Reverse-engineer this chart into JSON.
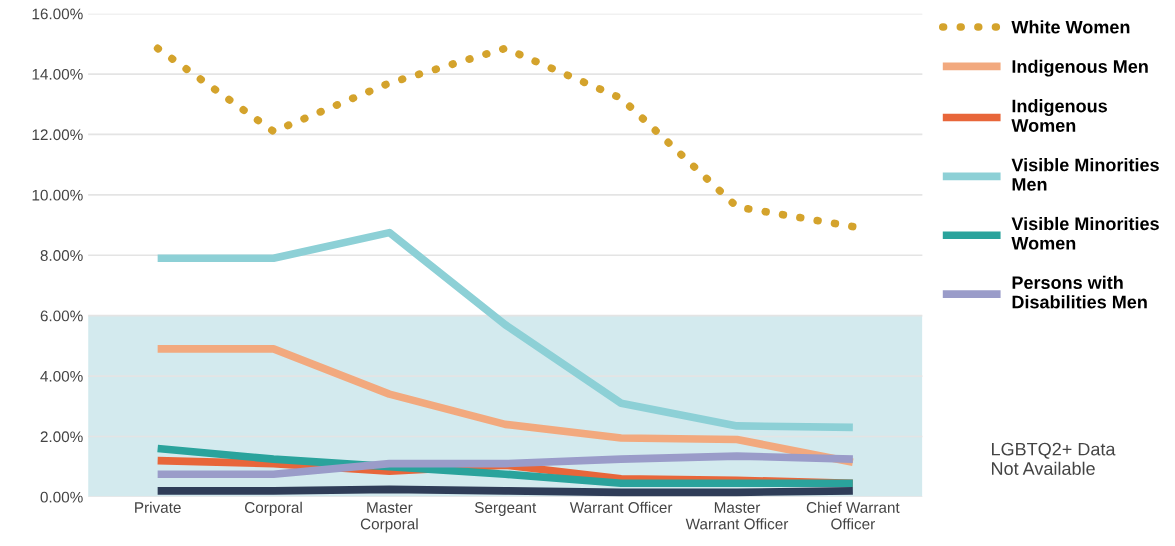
{
  "chart_data": {
    "type": "line",
    "categories": [
      "Private",
      "Corporal",
      "Master\nCorporal",
      "Sergeant",
      "Warrant Officer",
      "Master\nWarrant Officer",
      "Chief Warrant\nOfficer"
    ],
    "series": [
      {
        "name": "White Women",
        "color": "#d4a32c",
        "line_style": "dotted",
        "values": [
          14.85,
          12.1,
          13.7,
          14.85,
          13.2,
          9.6,
          8.95
        ]
      },
      {
        "name": "Indigenous Men",
        "color": "#f2a97e",
        "values": [
          4.9,
          4.9,
          3.4,
          2.4,
          1.95,
          1.9,
          1.15
        ]
      },
      {
        "name": "Indigenous\nWomen",
        "color": "#e8663a",
        "values": [
          1.2,
          1.1,
          0.85,
          1.05,
          0.6,
          0.55,
          0.45
        ]
      },
      {
        "name": "Visible Minorities\nMen",
        "color": "#8dd0d6",
        "values": [
          7.9,
          7.9,
          8.75,
          5.7,
          3.1,
          2.35,
          2.3
        ]
      },
      {
        "name": "Visible Minorities\nWomen",
        "color": "#2aa39c",
        "values": [
          1.6,
          1.25,
          1.0,
          0.75,
          0.45,
          0.45,
          0.45
        ]
      },
      {
        "name": "Persons with\nDisabilities Men",
        "color": "#9a9cc9",
        "values": [
          0.75,
          0.75,
          1.1,
          1.1,
          1.25,
          1.35,
          1.25
        ]
      },
      {
        "color": "#2f3d58",
        "values": [
          0.2,
          0.2,
          0.25,
          0.2,
          0.15,
          0.15,
          0.2
        ]
      }
    ],
    "ylim": [
      0,
      16
    ],
    "yticks": [
      {
        "value": 0,
        "label": "0.00%"
      },
      {
        "value": 2,
        "label": "2.00%"
      },
      {
        "value": 4,
        "label": "4.00%"
      },
      {
        "value": 6,
        "label": "6.00%"
      },
      {
        "value": 8,
        "label": "8.00%"
      },
      {
        "value": 10,
        "label": "10.00%"
      },
      {
        "value": 12,
        "label": "12.00%"
      },
      {
        "value": 14,
        "label": "14.00%"
      },
      {
        "value": 16,
        "label": "16.00%"
      }
    ],
    "bands": [
      {
        "axis": "y",
        "from": 0,
        "to": 6,
        "color": "#d3eaee"
      }
    ],
    "grid": "y",
    "legend": "right",
    "marker": "none",
    "annotations": [
      "LGBTQ2+ Data\nNot Available"
    ]
  }
}
